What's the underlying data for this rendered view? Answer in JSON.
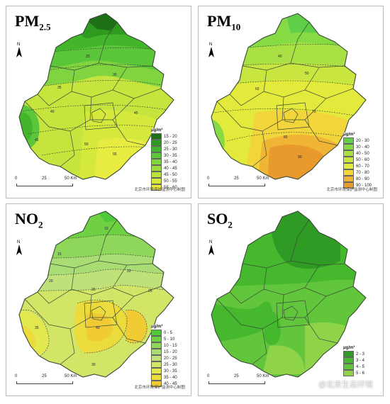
{
  "panels": [
    {
      "id": "pm25",
      "title_main": "PM",
      "title_sub": "2.5",
      "north": "N",
      "legend_unit": "μg/m³",
      "legend": [
        {
          "label": "15 - 20",
          "color": "#1e6f16"
        },
        {
          "label": "20 - 25",
          "color": "#2f9a20"
        },
        {
          "label": "25 - 30",
          "color": "#42b52a"
        },
        {
          "label": "30 - 35",
          "color": "#5cc63a"
        },
        {
          "label": "35 - 40",
          "color": "#7fd43f"
        },
        {
          "label": "40 - 45",
          "color": "#9edb40"
        },
        {
          "label": "45 - 50",
          "color": "#bce23e"
        },
        {
          "label": "50 - 55",
          "color": "#d5e83c"
        },
        {
          "label": "55 - 60",
          "color": "#e8ec40"
        }
      ],
      "scale": {
        "t0": "0",
        "t1": "25",
        "t2": "50 Km"
      },
      "credit": "北京市环境保护监测中心制图"
    },
    {
      "id": "pm10",
      "title_main": "PM",
      "title_sub": "10",
      "north": "N",
      "legend_unit": "μg/m³",
      "legend": [
        {
          "label": "20 - 30",
          "color": "#5ecf47"
        },
        {
          "label": "30 - 40",
          "color": "#86da44"
        },
        {
          "label": "40 - 50",
          "color": "#a9e044"
        },
        {
          "label": "50 - 60",
          "color": "#c8e63f"
        },
        {
          "label": "60 - 70",
          "color": "#e3ea3c"
        },
        {
          "label": "70 - 80",
          "color": "#f1d53a"
        },
        {
          "label": "80 - 90",
          "color": "#f0b534"
        },
        {
          "label": "90 - 100",
          "color": "#e89a2c"
        }
      ],
      "scale": {
        "t0": "0",
        "t1": "25",
        "t2": "50 Km"
      },
      "credit": "北京市环境保护监测中心制图"
    },
    {
      "id": "no2",
      "title_main": "NO",
      "title_sub": "2",
      "north": "N",
      "legend_unit": "μg/m³",
      "legend": [
        {
          "label": "0 - 5",
          "color": "#4fc93a"
        },
        {
          "label": "5 - 10",
          "color": "#6fd043"
        },
        {
          "label": "10 - 15",
          "color": "#8ed75a"
        },
        {
          "label": "15 - 20",
          "color": "#a9dc74"
        },
        {
          "label": "20 - 25",
          "color": "#c0e17a"
        },
        {
          "label": "25 - 30",
          "color": "#d3e566"
        },
        {
          "label": "30 - 35",
          "color": "#e2e84e"
        },
        {
          "label": "35 - 40",
          "color": "#ecdb3c"
        },
        {
          "label": "40 - 45",
          "color": "#f0cb34"
        }
      ],
      "scale": {
        "t0": "0",
        "t1": "25",
        "t2": "50 Km"
      },
      "credit": "北京市环境保护监测中心制图"
    },
    {
      "id": "so2",
      "title_main": "SO",
      "title_sub": "2",
      "north": "N",
      "legend_unit": "μg/m³",
      "legend": [
        {
          "label": "2 - 3",
          "color": "#2f9a24"
        },
        {
          "label": "3 - 4",
          "color": "#45b82e"
        },
        {
          "label": "4 - 5",
          "color": "#62c63c"
        },
        {
          "label": "5 - 6",
          "color": "#8fd448"
        }
      ],
      "scale": {
        "t0": "0",
        "t1": "25",
        "t2": "50 Km"
      },
      "credit": "",
      "watermark": "@北京生态环境"
    }
  ],
  "colors": {
    "border": "#b9b9b9",
    "district_line": "#3a4a38",
    "contour": "#334033"
  }
}
